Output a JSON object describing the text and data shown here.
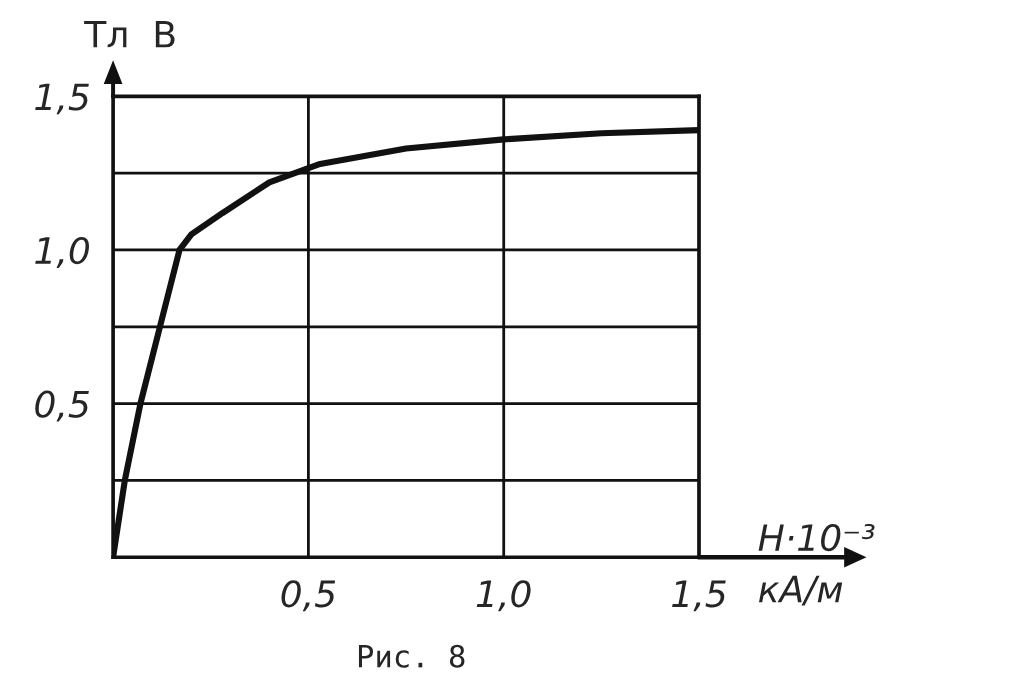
{
  "chart_data": {
    "type": "line",
    "ylabel": "Тл  B",
    "xlabel": "H·10⁻³\nкА/м",
    "annotations": [
      "Рис. 8"
    ],
    "x": [
      0,
      0.03,
      0.07,
      0.12,
      0.17,
      0.2,
      0.28,
      0.4,
      0.53,
      0.75,
      1.0,
      1.25,
      1.5
    ],
    "series": [
      {
        "color": "#111111",
        "values": [
          0,
          0.25,
          0.5,
          0.75,
          1.0,
          1.05,
          1.12,
          1.22,
          1.28,
          1.33,
          1.36,
          1.38,
          1.39
        ]
      }
    ],
    "xlim": [
      0,
      1.5
    ],
    "ylim": [
      0,
      1.5
    ],
    "xticks": [
      {
        "value": 0,
        "label": null
      },
      {
        "value": 0.5,
        "label": "0,5"
      },
      {
        "value": 1.0,
        "label": "1,0"
      },
      {
        "value": 1.5,
        "label": "1,5"
      }
    ],
    "yticks": [
      {
        "value": 0,
        "label": null
      },
      {
        "value": 0.25,
        "label": null
      },
      {
        "value": 0.5,
        "label": "0,5"
      },
      {
        "value": 0.75,
        "label": null
      },
      {
        "value": 1.0,
        "label": "1,0"
      },
      {
        "value": 1.25,
        "label": null
      },
      {
        "value": 1.5,
        "label": "1,5"
      }
    ],
    "grid": true,
    "legend": false,
    "marker": "none",
    "line_style": "solid"
  }
}
